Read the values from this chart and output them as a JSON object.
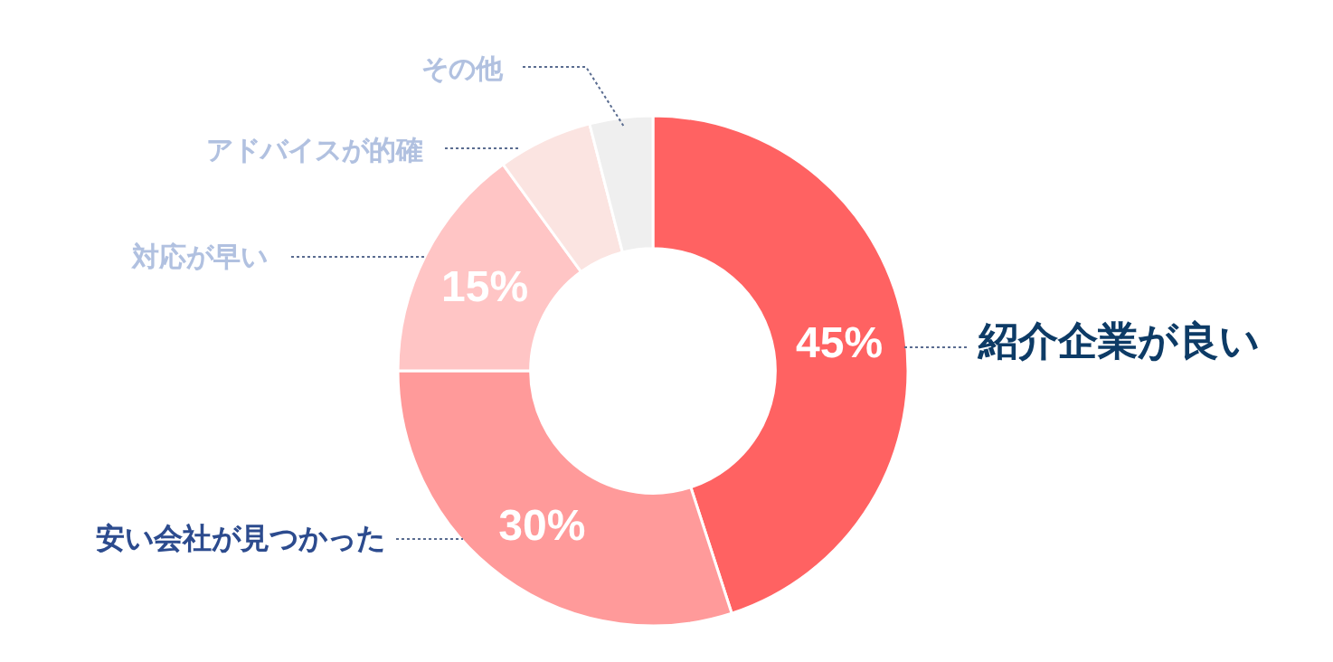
{
  "chart_data": {
    "type": "donut",
    "categories": [
      "紹介企業が良い",
      "安い会社が見つかった",
      "対応が早い",
      "アドバイスが的確",
      "その他"
    ],
    "values": [
      45,
      30,
      15,
      6,
      4
    ],
    "colors": [
      "#ff6262",
      "#ff9a9a",
      "#ffc5c5",
      "#fbe4e1",
      "#efefef"
    ],
    "value_labels": [
      "45%",
      "30%",
      "15%",
      null,
      null
    ],
    "legend": false
  }
}
